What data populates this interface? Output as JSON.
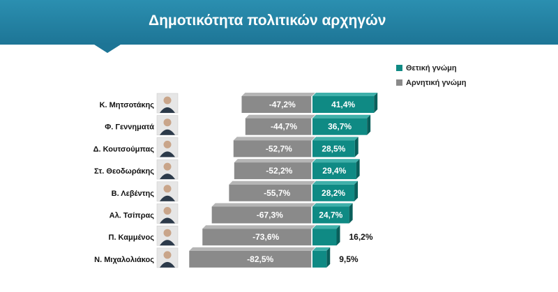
{
  "header": {
    "title": "Δημοτικότητα πολιτικών αρχηγών"
  },
  "colors": {
    "positive": "#0f8a84",
    "negative": "#8a8a8a",
    "header": "#1d7596"
  },
  "chart_data": {
    "type": "bar",
    "orientation": "horizontal-diverging",
    "title": "Δημοτικότητα πολιτικών αρχηγών",
    "categories": [
      "Κ. Μητσοτάκης",
      "Φ. Γεννηματά",
      "Δ. Κουτσούμπας",
      "Στ. Θεοδωράκης",
      "Β. Λεβέντης",
      "Αλ. Τσίπρας",
      "Π. Καμμένος",
      "Ν. Μιχαλολιάκος"
    ],
    "series": [
      {
        "name": "Θετική γνώμη",
        "values": [
          41.4,
          36.7,
          28.5,
          29.4,
          28.2,
          24.7,
          16.2,
          9.5
        ],
        "labels": [
          "41,4%",
          "36,7%",
          "28,5%",
          "29,4%",
          "28,2%",
          "24,7%",
          "16,2%",
          "9,5%"
        ],
        "color": "#0f8a84"
      },
      {
        "name": "Αρνητική γνώμη",
        "values": [
          -47.2,
          -44.7,
          -52.7,
          -52.2,
          -55.7,
          -67.3,
          -73.6,
          -82.5
        ],
        "labels": [
          "-47,2%",
          "-44,7%",
          "-52,7%",
          "-52,2%",
          "-55,7%",
          "-67,3%",
          "-73,6%",
          "-82,5%"
        ],
        "color": "#8a8a8a"
      }
    ],
    "legend_position": "top-right",
    "grid": false,
    "avatar_icons": [
      "portrait-icon",
      "portrait-icon",
      "portrait-icon",
      "portrait-icon",
      "portrait-icon",
      "portrait-icon",
      "portrait-icon",
      "portrait-icon"
    ]
  }
}
